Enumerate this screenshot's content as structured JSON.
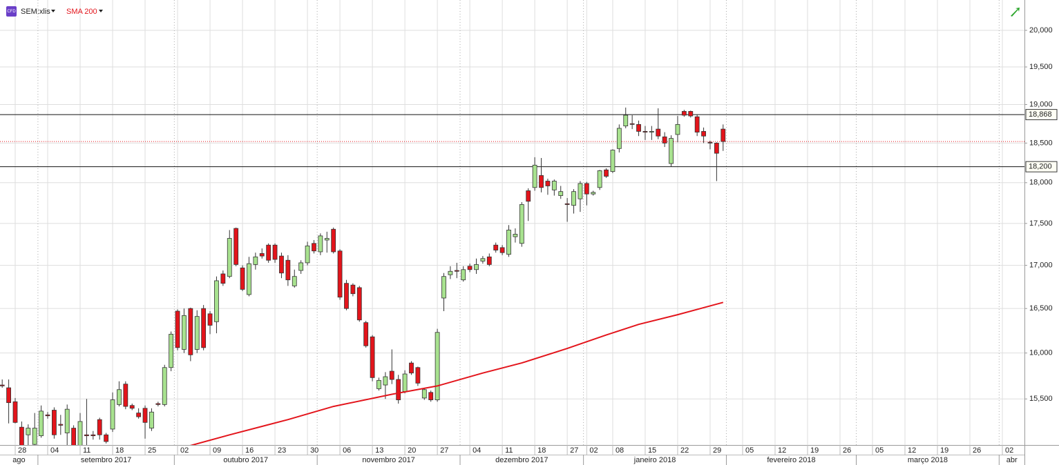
{
  "chart_data": {
    "type": "candlestick",
    "symbol": "SEM:xlis",
    "badge": "CFD",
    "log_scale": true,
    "grid": true,
    "xlim": [
      -0.34,
      157.4
    ],
    "ylim": [
      15014,
      20424
    ],
    "yticks": [
      {
        "value": 15500,
        "label": "15,500"
      },
      {
        "value": 16000,
        "label": "16,000"
      },
      {
        "value": 16500,
        "label": "16,500"
      },
      {
        "value": 17000,
        "label": "17,000"
      },
      {
        "value": 17500,
        "label": "17,500"
      },
      {
        "value": 18000,
        "label": "18,000"
      },
      {
        "value": 18500,
        "label": "18,500"
      },
      {
        "value": 19000,
        "label": "19,000"
      },
      {
        "value": 19500,
        "label": "19,500"
      },
      {
        "value": 20000,
        "label": "20,000"
      }
    ],
    "xticks": [
      {
        "value": 2,
        "label": "28"
      },
      {
        "value": 7,
        "label": "04"
      },
      {
        "value": 12,
        "label": "11"
      },
      {
        "value": 17,
        "label": "18"
      },
      {
        "value": 22,
        "label": "25"
      },
      {
        "value": 27,
        "label": "02"
      },
      {
        "value": 32,
        "label": "09"
      },
      {
        "value": 37,
        "label": "16"
      },
      {
        "value": 42,
        "label": "23"
      },
      {
        "value": 47,
        "label": "30"
      },
      {
        "value": 52,
        "label": "06"
      },
      {
        "value": 57,
        "label": "13"
      },
      {
        "value": 62,
        "label": "20"
      },
      {
        "value": 67,
        "label": "27"
      },
      {
        "value": 72,
        "label": "04"
      },
      {
        "value": 77,
        "label": "11"
      },
      {
        "value": 82,
        "label": "18"
      },
      {
        "value": 87,
        "label": "27"
      },
      {
        "value": 90,
        "label": "02"
      },
      {
        "value": 94,
        "label": "08"
      },
      {
        "value": 99,
        "label": "15"
      },
      {
        "value": 104,
        "label": "22"
      },
      {
        "value": 109,
        "label": "29"
      },
      {
        "value": 114,
        "label": "05"
      },
      {
        "value": 119,
        "label": "12"
      },
      {
        "value": 124,
        "label": "19"
      },
      {
        "value": 129,
        "label": "26"
      },
      {
        "value": 134,
        "label": "05"
      },
      {
        "value": 139,
        "label": "12"
      },
      {
        "value": 144,
        "label": "19"
      },
      {
        "value": 149,
        "label": "26"
      },
      {
        "value": 154,
        "label": "02"
      }
    ],
    "months": [
      {
        "value": -17,
        "label": "ago"
      },
      {
        "value": 6,
        "label": "setembro 2017"
      },
      {
        "value": 27,
        "label": "outubro 2017"
      },
      {
        "value": 49,
        "label": "novembro 2017"
      },
      {
        "value": 71,
        "label": "dezembro 2017"
      },
      {
        "value": 90,
        "label": "janeiro 2018"
      },
      {
        "value": 112,
        "label": "fevereiro 2018"
      },
      {
        "value": 132,
        "label": "março 2018"
      },
      {
        "value": 154,
        "label": "abr"
      }
    ],
    "up_color": "#a8e28f",
    "down_color": "#e3141b",
    "candles": {
      "open": [
        15650,
        15620,
        15470,
        15200,
        15120,
        15020,
        15110,
        15330,
        15380,
        15230,
        15140,
        15190,
        15010,
        15120,
        15120,
        15280,
        15120,
        15180,
        15440,
        15660,
        15430,
        15350,
        15400,
        15190,
        15450,
        15440,
        15840,
        16470,
        16040,
        16500,
        16040,
        16500,
        16440,
        16350,
        16900,
        16870,
        17440,
        16970,
        16660,
        17010,
        17140,
        17240,
        17240,
        17110,
        17060,
        16760,
        16940,
        17030,
        17260,
        17160,
        17300,
        17430,
        17170,
        16790,
        16770,
        16740,
        16340,
        16180,
        15610,
        15650,
        15800,
        15710,
        15580,
        15890,
        15840,
        15510,
        15570,
        15490,
        16620,
        16890,
        16940,
        16830,
        16990,
        16950,
        17050,
        17100,
        17240,
        17210,
        17130,
        17340,
        17260,
        17900,
        17940,
        18090,
        18020,
        17910,
        17840,
        17740,
        17720,
        17800,
        17990,
        17860,
        17940,
        18160,
        18140,
        18430,
        18720,
        18750,
        18740,
        18650,
        18640,
        18680,
        18580,
        18240,
        18610,
        18910,
        18910,
        18840,
        18650,
        18510,
        18500,
        18680
      ],
      "high": [
        15710,
        15710,
        15510,
        15260,
        15230,
        15350,
        15430,
        15360,
        15410,
        15330,
        15440,
        15220,
        15350,
        15500,
        15160,
        15300,
        15140,
        15570,
        15690,
        15690,
        15450,
        15400,
        15430,
        15400,
        15470,
        15870,
        16240,
        16490,
        16500,
        16510,
        16480,
        16540,
        16470,
        16870,
        16940,
        17420,
        17450,
        17000,
        17100,
        17150,
        17200,
        17260,
        17260,
        17150,
        17120,
        16950,
        17060,
        17280,
        17300,
        17380,
        17400,
        17450,
        17190,
        16830,
        16790,
        16760,
        16360,
        16200,
        15730,
        15790,
        16040,
        15760,
        15810,
        15910,
        15850,
        15620,
        15590,
        16270,
        16910,
        16990,
        17030,
        16990,
        17020,
        17080,
        17110,
        17140,
        17270,
        17240,
        17480,
        17440,
        17760,
        17930,
        18320,
        18310,
        18050,
        18040,
        17960,
        17810,
        17920,
        18020,
        18010,
        17900,
        18160,
        18180,
        18420,
        18740,
        18960,
        18860,
        18790,
        18720,
        18720,
        18950,
        18640,
        18600,
        18850,
        18930,
        18920,
        18870,
        18700,
        18530,
        18510,
        18740
      ],
      "low": [
        15620,
        15240,
        15240,
        14980,
        15000,
        15000,
        15090,
        15290,
        15080,
        15120,
        14980,
        14990,
        14990,
        14990,
        15070,
        15070,
        15030,
        15150,
        15420,
        15390,
        15380,
        15290,
        15080,
        15160,
        15420,
        15420,
        15800,
        16030,
        16000,
        15910,
        16000,
        16030,
        16210,
        16220,
        16760,
        16850,
        16990,
        16700,
        16640,
        16950,
        17080,
        17030,
        17030,
        16850,
        16760,
        16740,
        16900,
        17000,
        17140,
        17120,
        17150,
        17140,
        16600,
        16480,
        16640,
        16350,
        16060,
        15690,
        15590,
        15500,
        15660,
        15450,
        15560,
        15760,
        15640,
        15490,
        15470,
        15470,
        16470,
        16840,
        16850,
        16810,
        16920,
        16900,
        17020,
        16990,
        17150,
        17120,
        17100,
        17270,
        17220,
        17530,
        17900,
        17880,
        17850,
        17840,
        17800,
        17520,
        17620,
        17640,
        17720,
        17840,
        17910,
        18060,
        18120,
        18380,
        18690,
        18680,
        18590,
        18540,
        18540,
        18550,
        18450,
        18200,
        18510,
        18840,
        18830,
        18590,
        18500,
        18420,
        18020,
        18400
      ],
      "close": [
        15640,
        15460,
        15250,
        15010,
        15190,
        15190,
        15370,
        15320,
        15120,
        15220,
        15390,
        15010,
        15260,
        15110,
        15110,
        15120,
        15050,
        15490,
        15600,
        15420,
        15400,
        15310,
        15250,
        15360,
        15440,
        15840,
        16210,
        16060,
        16420,
        15980,
        16410,
        16060,
        16310,
        16820,
        16790,
        17320,
        17010,
        16720,
        17020,
        17100,
        17110,
        17060,
        17070,
        16910,
        16830,
        16870,
        17030,
        17230,
        17170,
        17350,
        17320,
        17160,
        16630,
        16500,
        16670,
        16370,
        16080,
        15730,
        15700,
        15740,
        15710,
        15490,
        15770,
        15780,
        15670,
        15600,
        15490,
        16230,
        16870,
        16930,
        16930,
        16950,
        16950,
        17010,
        17080,
        17010,
        17180,
        17150,
        17420,
        17370,
        17730,
        17770,
        18220,
        17940,
        17960,
        18020,
        17890,
        17730,
        17890,
        17990,
        17860,
        17880,
        18150,
        18080,
        18410,
        18690,
        18860,
        18740,
        18650,
        18640,
        18650,
        18590,
        18500,
        18560,
        18740,
        18860,
        18850,
        18640,
        18590,
        18500,
        18370,
        18520
      ]
    },
    "sma": {
      "name": "SMA 200",
      "color": "#e3141b",
      "x": [
        28,
        35,
        44,
        51,
        60,
        67,
        74,
        80,
        87,
        93,
        98,
        104,
        111
      ],
      "values": [
        14990,
        15120,
        15280,
        15420,
        15550,
        15640,
        15780,
        15890,
        16050,
        16200,
        16320,
        16430,
        16570
      ]
    },
    "levels": [
      {
        "value": 18868,
        "label": "18,868"
      },
      {
        "value": 18200,
        "label": "18,200"
      }
    ]
  }
}
